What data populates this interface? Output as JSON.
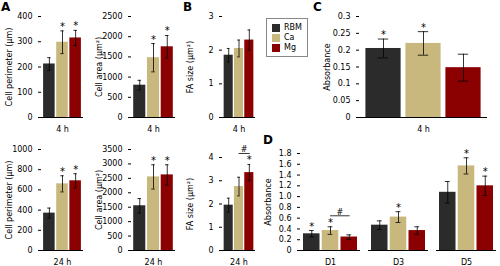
{
  "chart_data": [
    {
      "type": "bar",
      "title": "A",
      "categories": [
        "4 h"
      ],
      "series": [
        {
          "name": "RBM",
          "color": "#2b2b2b",
          "values": [
            212
          ],
          "errors": [
            25
          ]
        },
        {
          "name": "Ca",
          "color": "#c8b87d",
          "values": [
            298
          ],
          "errors": [
            45
          ]
        },
        {
          "name": "Mg",
          "color": "#8b0000",
          "values": [
            315
          ],
          "errors": [
            30
          ]
        }
      ],
      "ylabel": "Cell perimeter (μm)",
      "ylim": [
        0,
        400
      ],
      "yticks": [
        0,
        100,
        200,
        300,
        400
      ],
      "annotations": [
        {
          "text": "*",
          "category": "4 h",
          "series": "Ca"
        },
        {
          "text": "*",
          "category": "4 h",
          "series": "Mg"
        }
      ]
    },
    {
      "type": "bar",
      "categories": [
        "4 h"
      ],
      "series": [
        {
          "name": "RBM",
          "color": "#2b2b2b",
          "values": [
            800
          ],
          "errors": [
            120
          ]
        },
        {
          "name": "Ca",
          "color": "#c8b87d",
          "values": [
            1480
          ],
          "errors": [
            350
          ]
        },
        {
          "name": "Mg",
          "color": "#8b0000",
          "values": [
            1750
          ],
          "errors": [
            280
          ]
        }
      ],
      "ylabel": "Cell area (μm²)",
      "ylim": [
        0,
        2500
      ],
      "yticks": [
        0,
        500,
        1000,
        1500,
        2000,
        2500
      ],
      "annotations": [
        {
          "text": "*",
          "category": "4 h",
          "series": "Ca"
        },
        {
          "text": "*",
          "category": "4 h",
          "series": "Mg"
        }
      ]
    },
    {
      "type": "bar",
      "categories": [
        "24 h"
      ],
      "series": [
        {
          "name": "RBM",
          "color": "#2b2b2b",
          "values": [
            370
          ],
          "errors": [
            50
          ]
        },
        {
          "name": "Ca",
          "color": "#c8b87d",
          "values": [
            660
          ],
          "errors": [
            80
          ]
        },
        {
          "name": "Mg",
          "color": "#8b0000",
          "values": [
            690
          ],
          "errors": [
            70
          ]
        }
      ],
      "ylabel": "Cell perimeter (μm)",
      "ylim": [
        0,
        1000
      ],
      "yticks": [
        0,
        200,
        400,
        600,
        800,
        1000
      ],
      "annotations": [
        {
          "text": "*",
          "category": "24 h",
          "series": "Ca"
        },
        {
          "text": "*",
          "category": "24 h",
          "series": "Mg"
        }
      ]
    },
    {
      "type": "bar",
      "categories": [
        "24 h"
      ],
      "series": [
        {
          "name": "RBM",
          "color": "#2b2b2b",
          "values": [
            1550
          ],
          "errors": [
            250
          ]
        },
        {
          "name": "Ca",
          "color": "#c8b87d",
          "values": [
            2550
          ],
          "errors": [
            420
          ]
        },
        {
          "name": "Mg",
          "color": "#8b0000",
          "values": [
            2620
          ],
          "errors": [
            350
          ]
        }
      ],
      "ylabel": "Cell area (μm²)",
      "ylim": [
        0,
        3500
      ],
      "yticks": [
        0,
        500,
        1000,
        1500,
        2000,
        2500,
        3000,
        3500
      ],
      "annotations": [
        {
          "text": "*",
          "category": "24 h",
          "series": "Ca"
        },
        {
          "text": "*",
          "category": "24 h",
          "series": "Mg"
        }
      ]
    },
    {
      "type": "bar",
      "title": "B",
      "categories": [
        "4 h"
      ],
      "series": [
        {
          "name": "RBM",
          "color": "#2b2b2b",
          "values": [
            1.85
          ],
          "errors": [
            0.2
          ]
        },
        {
          "name": "Ca",
          "color": "#c8b87d",
          "values": [
            2.05
          ],
          "errors": [
            0.25
          ]
        },
        {
          "name": "Mg",
          "color": "#8b0000",
          "values": [
            2.3
          ],
          "errors": [
            0.3
          ]
        }
      ],
      "ylabel": "FA size (μm²)",
      "ylim": [
        0,
        3
      ],
      "yticks": [
        0,
        1,
        2,
        3
      ]
    },
    {
      "type": "bar",
      "categories": [
        "24 h"
      ],
      "series": [
        {
          "name": "RBM",
          "color": "#2b2b2b",
          "values": [
            1.95
          ],
          "errors": [
            0.3
          ]
        },
        {
          "name": "Ca",
          "color": "#c8b87d",
          "values": [
            2.75
          ],
          "errors": [
            0.4
          ]
        },
        {
          "name": "Mg",
          "color": "#8b0000",
          "values": [
            3.35
          ],
          "errors": [
            0.35
          ]
        }
      ],
      "ylabel": "FA size (μm²)",
      "ylim": [
        0,
        4
      ],
      "yticks": [
        0,
        1,
        2,
        3,
        4
      ],
      "annotations": [
        {
          "text": "*",
          "category": "24 h",
          "series": "Mg"
        },
        {
          "text": "#",
          "category": "24 h",
          "series": [
            "Ca",
            "Mg"
          ]
        }
      ]
    },
    {
      "type": "bar",
      "title": "C",
      "categories": [
        "4 h"
      ],
      "series": [
        {
          "name": "RBM",
          "color": "#2b2b2b",
          "values": [
            0.205
          ],
          "errors": [
            0.028
          ]
        },
        {
          "name": "Ca",
          "color": "#c8b87d",
          "values": [
            0.22
          ],
          "errors": [
            0.035
          ]
        },
        {
          "name": "Mg",
          "color": "#8b0000",
          "values": [
            0.148
          ],
          "errors": [
            0.04
          ]
        }
      ],
      "ylabel": "Absorbance",
      "ylim": [
        0,
        0.3
      ],
      "yticks": [
        0,
        0.05,
        0.1,
        0.15,
        0.2,
        0.25,
        0.3
      ],
      "annotations": [
        {
          "text": "*",
          "category": "4 h",
          "series": "RBM"
        },
        {
          "text": "*",
          "category": "4 h",
          "series": "Ca"
        }
      ]
    },
    {
      "type": "bar",
      "title": "D",
      "categories": [
        "D1",
        "D3",
        "D5"
      ],
      "series": [
        {
          "name": "RBM",
          "color": "#2b2b2b",
          "values": [
            0.31,
            0.47,
            1.08
          ],
          "errors": [
            0.06,
            0.08,
            0.2
          ]
        },
        {
          "name": "Ca",
          "color": "#c8b87d",
          "values": [
            0.37,
            0.62,
            1.57
          ],
          "errors": [
            0.07,
            0.1,
            0.15
          ]
        },
        {
          "name": "Mg",
          "color": "#8b0000",
          "values": [
            0.25,
            0.37,
            1.2
          ],
          "errors": [
            0.04,
            0.07,
            0.18
          ]
        }
      ],
      "ylabel": "Absorbance",
      "ylim": [
        0,
        1.8
      ],
      "yticks": [
        0,
        0.2,
        0.4,
        0.6,
        0.8,
        {
          "value": 1,
          "label": "1.0"
        },
        1.2,
        1.4,
        1.6,
        1.8
      ],
      "legend": "upper left",
      "annotations": [
        {
          "text": "*",
          "category": "D1",
          "series": "RBM"
        },
        {
          "text": "*",
          "category": "D1",
          "series": "Ca"
        },
        {
          "text": "#",
          "category": "D1",
          "series": [
            "Ca",
            "Mg"
          ]
        },
        {
          "text": "*",
          "category": "D3",
          "series": "Ca"
        },
        {
          "text": "*",
          "category": "D5",
          "series": "Ca"
        },
        {
          "text": "*",
          "category": "D5",
          "series": "Mg"
        }
      ]
    }
  ]
}
